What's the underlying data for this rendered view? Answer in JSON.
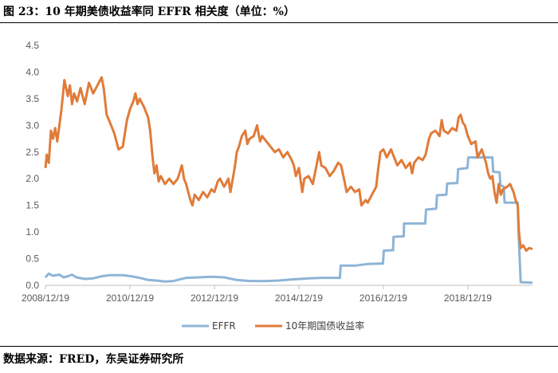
{
  "title": "图 23：10 年期美债收益率同 EFFR 相关度（单位：%）",
  "source": "数据来源：FRED，东吴证券研究所",
  "chart_data": {
    "type": "line",
    "ylim": [
      0,
      4.5
    ],
    "yticks": [
      "0.0",
      "0.5",
      "1.0",
      "1.5",
      "2.0",
      "2.5",
      "3.0",
      "3.5",
      "4.0",
      "4.5"
    ],
    "xlim": [
      2008.97,
      2020.5
    ],
    "xticks": [
      {
        "label": "2008/12/19",
        "x": 2008.97
      },
      {
        "label": "2010/12/19",
        "x": 2010.97
      },
      {
        "label": "2012/12/19",
        "x": 2012.97
      },
      {
        "label": "2014/12/19",
        "x": 2014.97
      },
      {
        "label": "2016/12/19",
        "x": 2016.97
      },
      {
        "label": "2018/12/19",
        "x": 2018.97
      }
    ],
    "series": [
      {
        "name": "EFFR",
        "color": "#8EB4D6",
        "points": [
          [
            2008.97,
            0.15
          ],
          [
            2009.05,
            0.22
          ],
          [
            2009.15,
            0.18
          ],
          [
            2009.3,
            0.2
          ],
          [
            2009.4,
            0.15
          ],
          [
            2009.5,
            0.17
          ],
          [
            2009.6,
            0.2
          ],
          [
            2009.7,
            0.15
          ],
          [
            2009.9,
            0.12
          ],
          [
            2010.1,
            0.13
          ],
          [
            2010.3,
            0.17
          ],
          [
            2010.5,
            0.19
          ],
          [
            2010.8,
            0.19
          ],
          [
            2011.0,
            0.17
          ],
          [
            2011.2,
            0.14
          ],
          [
            2011.4,
            0.1
          ],
          [
            2011.6,
            0.09
          ],
          [
            2011.8,
            0.07
          ],
          [
            2012.0,
            0.08
          ],
          [
            2012.3,
            0.14
          ],
          [
            2012.6,
            0.15
          ],
          [
            2012.9,
            0.16
          ],
          [
            2013.2,
            0.15
          ],
          [
            2013.5,
            0.1
          ],
          [
            2013.8,
            0.08
          ],
          [
            2014.2,
            0.08
          ],
          [
            2014.5,
            0.09
          ],
          [
            2014.8,
            0.11
          ],
          [
            2015.2,
            0.13
          ],
          [
            2015.5,
            0.14
          ],
          [
            2015.8,
            0.14
          ],
          [
            2015.94,
            0.14
          ],
          [
            2015.96,
            0.37
          ],
          [
            2016.3,
            0.37
          ],
          [
            2016.6,
            0.4
          ],
          [
            2016.96,
            0.41
          ],
          [
            2016.98,
            0.65
          ],
          [
            2017.2,
            0.66
          ],
          [
            2017.21,
            0.91
          ],
          [
            2017.45,
            0.92
          ],
          [
            2017.46,
            1.16
          ],
          [
            2017.96,
            1.16
          ],
          [
            2017.98,
            1.42
          ],
          [
            2018.22,
            1.44
          ],
          [
            2018.24,
            1.69
          ],
          [
            2018.46,
            1.7
          ],
          [
            2018.48,
            1.91
          ],
          [
            2018.72,
            1.92
          ],
          [
            2018.74,
            2.18
          ],
          [
            2018.96,
            2.2
          ],
          [
            2018.98,
            2.4
          ],
          [
            2019.55,
            2.4
          ],
          [
            2019.57,
            2.13
          ],
          [
            2019.72,
            2.12
          ],
          [
            2019.74,
            1.88
          ],
          [
            2019.82,
            1.85
          ],
          [
            2019.84,
            1.55
          ],
          [
            2020.15,
            1.55
          ],
          [
            2020.17,
            1.0
          ],
          [
            2020.22,
            0.06
          ],
          [
            2020.5,
            0.05
          ]
        ]
      },
      {
        "name": "10年期国债收益率",
        "color": "#E07B39",
        "points": [
          [
            2008.97,
            2.2
          ],
          [
            2009.0,
            2.45
          ],
          [
            2009.05,
            2.3
          ],
          [
            2009.1,
            2.9
          ],
          [
            2009.15,
            2.75
          ],
          [
            2009.2,
            2.95
          ],
          [
            2009.25,
            2.7
          ],
          [
            2009.3,
            3.0
          ],
          [
            2009.35,
            3.3
          ],
          [
            2009.42,
            3.85
          ],
          [
            2009.5,
            3.55
          ],
          [
            2009.55,
            3.75
          ],
          [
            2009.6,
            3.4
          ],
          [
            2009.65,
            3.6
          ],
          [
            2009.72,
            3.45
          ],
          [
            2009.8,
            3.7
          ],
          [
            2009.9,
            3.4
          ],
          [
            2010.0,
            3.8
          ],
          [
            2010.1,
            3.6
          ],
          [
            2010.2,
            3.75
          ],
          [
            2010.3,
            3.9
          ],
          [
            2010.35,
            3.7
          ],
          [
            2010.42,
            3.2
          ],
          [
            2010.5,
            3.05
          ],
          [
            2010.6,
            2.85
          ],
          [
            2010.7,
            2.55
          ],
          [
            2010.8,
            2.6
          ],
          [
            2010.9,
            3.1
          ],
          [
            2010.97,
            3.3
          ],
          [
            2011.05,
            3.45
          ],
          [
            2011.1,
            3.6
          ],
          [
            2011.15,
            3.4
          ],
          [
            2011.2,
            3.5
          ],
          [
            2011.3,
            3.35
          ],
          [
            2011.4,
            3.15
          ],
          [
            2011.45,
            2.9
          ],
          [
            2011.5,
            2.45
          ],
          [
            2011.55,
            2.1
          ],
          [
            2011.6,
            2.25
          ],
          [
            2011.65,
            1.95
          ],
          [
            2011.7,
            2.05
          ],
          [
            2011.8,
            1.9
          ],
          [
            2011.9,
            2.0
          ],
          [
            2012.0,
            1.9
          ],
          [
            2012.1,
            2.0
          ],
          [
            2012.2,
            2.25
          ],
          [
            2012.25,
            2.0
          ],
          [
            2012.3,
            1.9
          ],
          [
            2012.4,
            1.6
          ],
          [
            2012.45,
            1.5
          ],
          [
            2012.5,
            1.7
          ],
          [
            2012.6,
            1.6
          ],
          [
            2012.7,
            1.75
          ],
          [
            2012.8,
            1.65
          ],
          [
            2012.9,
            1.8
          ],
          [
            2012.97,
            1.75
          ],
          [
            2013.05,
            1.95
          ],
          [
            2013.1,
            2.0
          ],
          [
            2013.2,
            1.85
          ],
          [
            2013.3,
            2.0
          ],
          [
            2013.35,
            1.75
          ],
          [
            2013.45,
            2.2
          ],
          [
            2013.5,
            2.5
          ],
          [
            2013.55,
            2.6
          ],
          [
            2013.62,
            2.8
          ],
          [
            2013.7,
            2.9
          ],
          [
            2013.75,
            2.65
          ],
          [
            2013.8,
            2.75
          ],
          [
            2013.9,
            2.8
          ],
          [
            2013.98,
            3.0
          ],
          [
            2014.05,
            2.7
          ],
          [
            2014.1,
            2.8
          ],
          [
            2014.2,
            2.7
          ],
          [
            2014.3,
            2.6
          ],
          [
            2014.4,
            2.5
          ],
          [
            2014.5,
            2.55
          ],
          [
            2014.6,
            2.4
          ],
          [
            2014.7,
            2.5
          ],
          [
            2014.8,
            2.35
          ],
          [
            2014.85,
            2.25
          ],
          [
            2014.9,
            2.05
          ],
          [
            2014.97,
            2.2
          ],
          [
            2015.05,
            1.75
          ],
          [
            2015.1,
            2.0
          ],
          [
            2015.2,
            2.05
          ],
          [
            2015.3,
            1.9
          ],
          [
            2015.4,
            2.3
          ],
          [
            2015.45,
            2.5
          ],
          [
            2015.5,
            2.25
          ],
          [
            2015.6,
            2.2
          ],
          [
            2015.7,
            2.05
          ],
          [
            2015.8,
            2.15
          ],
          [
            2015.9,
            2.3
          ],
          [
            2015.97,
            2.25
          ],
          [
            2016.05,
            1.95
          ],
          [
            2016.1,
            1.75
          ],
          [
            2016.2,
            1.85
          ],
          [
            2016.3,
            1.75
          ],
          [
            2016.4,
            1.8
          ],
          [
            2016.45,
            1.5
          ],
          [
            2016.55,
            1.6
          ],
          [
            2016.6,
            1.55
          ],
          [
            2016.7,
            1.7
          ],
          [
            2016.8,
            1.85
          ],
          [
            2016.85,
            2.2
          ],
          [
            2016.9,
            2.5
          ],
          [
            2016.97,
            2.55
          ],
          [
            2017.05,
            2.4
          ],
          [
            2017.15,
            2.55
          ],
          [
            2017.2,
            2.45
          ],
          [
            2017.3,
            2.25
          ],
          [
            2017.4,
            2.35
          ],
          [
            2017.5,
            2.2
          ],
          [
            2017.6,
            2.3
          ],
          [
            2017.65,
            2.1
          ],
          [
            2017.7,
            2.3
          ],
          [
            2017.8,
            2.4
          ],
          [
            2017.9,
            2.35
          ],
          [
            2017.97,
            2.45
          ],
          [
            2018.05,
            2.75
          ],
          [
            2018.1,
            2.85
          ],
          [
            2018.2,
            2.9
          ],
          [
            2018.3,
            2.8
          ],
          [
            2018.35,
            3.1
          ],
          [
            2018.4,
            2.9
          ],
          [
            2018.5,
            2.85
          ],
          [
            2018.6,
            2.95
          ],
          [
            2018.7,
            2.9
          ],
          [
            2018.75,
            3.15
          ],
          [
            2018.8,
            3.2
          ],
          [
            2018.85,
            3.05
          ],
          [
            2018.9,
            3.0
          ],
          [
            2018.97,
            2.8
          ],
          [
            2019.05,
            2.65
          ],
          [
            2019.15,
            2.7
          ],
          [
            2019.2,
            2.4
          ],
          [
            2019.3,
            2.55
          ],
          [
            2019.4,
            2.3
          ],
          [
            2019.45,
            2.1
          ],
          [
            2019.5,
            2.0
          ],
          [
            2019.55,
            2.05
          ],
          [
            2019.6,
            1.75
          ],
          [
            2019.65,
            1.55
          ],
          [
            2019.7,
            1.9
          ],
          [
            2019.75,
            1.7
          ],
          [
            2019.8,
            1.8
          ],
          [
            2019.9,
            1.85
          ],
          [
            2019.97,
            1.9
          ],
          [
            2020.05,
            1.75
          ],
          [
            2020.1,
            1.6
          ],
          [
            2020.15,
            1.5
          ],
          [
            2020.18,
            1.0
          ],
          [
            2020.22,
            0.7
          ],
          [
            2020.28,
            0.75
          ],
          [
            2020.35,
            0.65
          ],
          [
            2020.42,
            0.7
          ],
          [
            2020.5,
            0.68
          ]
        ]
      }
    ]
  }
}
